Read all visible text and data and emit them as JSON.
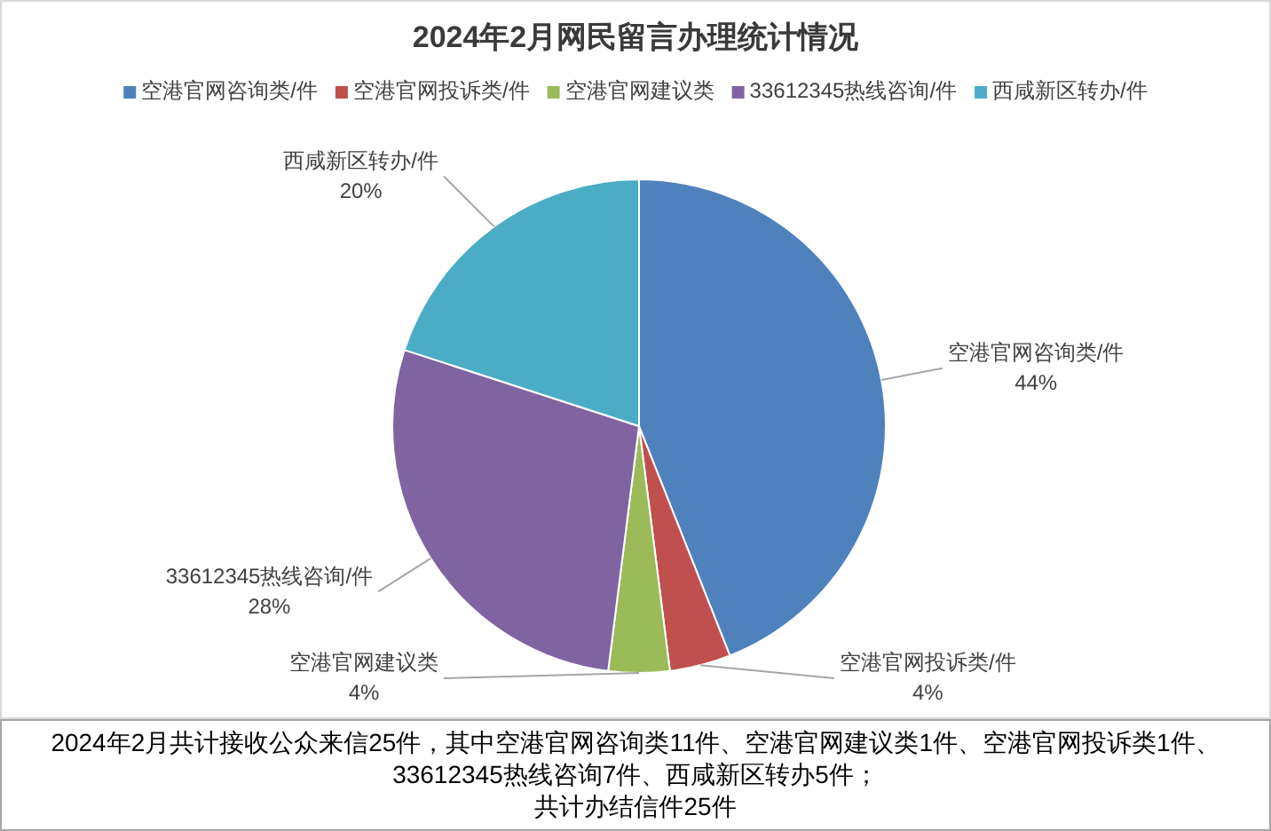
{
  "chart_data": {
    "type": "pie",
    "title": "2024年2月网民留言办理统计情况",
    "categories": [
      "空港官网咨询类/件",
      "空港官网投诉类/件",
      "空港官网建议类",
      "33612345热线咨询/件",
      "西咸新区转办/件"
    ],
    "values": [
      44,
      4,
      4,
      28,
      20
    ],
    "colors": [
      "#4f81bd",
      "#c0504d",
      "#9bbb59",
      "#8064a2",
      "#4bacc6"
    ],
    "value_labels": [
      "44%",
      "4%",
      "4%",
      "28%",
      "20%"
    ],
    "legend": "top",
    "annotations": [
      "2024年2月共计接收公众来信25件，其中空港官网咨询类11件、空港官网建议类1件、空港官网投诉类1件、33612345热线咨询7件、西咸新区转办5件；",
      "共计办结信件25件"
    ]
  }
}
